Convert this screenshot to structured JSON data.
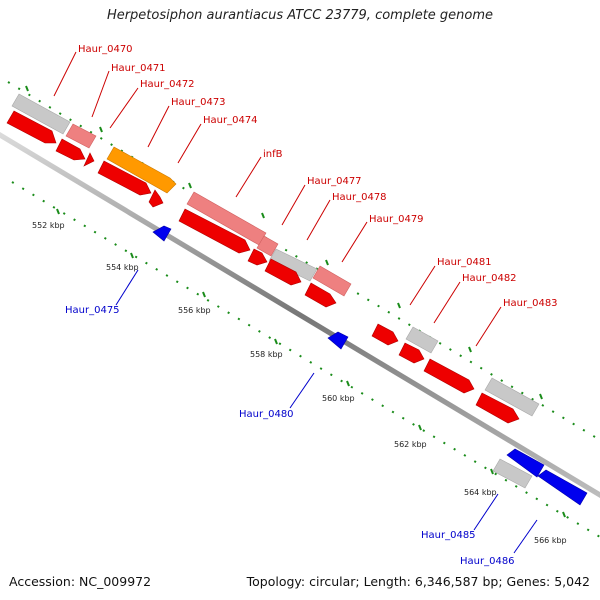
{
  "title": "Herpetosiphon aurantiacus ATCC 23779, complete genome",
  "accession": "Accession: NC_009972",
  "topology": "Topology: circular; Length: 6,346,587 bp; Genes: 5,042",
  "colors": {
    "forward_red": "#ee0000",
    "forward_pink": "#ee8080",
    "forward_orange": "#ff9900",
    "neutral_gray": "#c8c8c8",
    "reverse_blue": "#0000ee",
    "backbone": "#888888",
    "tick_green": "#1a8c1a",
    "forward_label": "#cc0000",
    "reverse_label": "#0000cc"
  },
  "scale": {
    "ticks": [
      {
        "label": "552 kbp"
      },
      {
        "label": "554 kbp"
      },
      {
        "label": "556 kbp"
      },
      {
        "label": "558 kbp"
      },
      {
        "label": "560 kbp"
      },
      {
        "label": "562 kbp"
      },
      {
        "label": "564 kbp"
      },
      {
        "label": "566 kbp"
      }
    ]
  },
  "forward_labels": [
    {
      "name": "Haur_0470"
    },
    {
      "name": "Haur_0471"
    },
    {
      "name": "Haur_0472"
    },
    {
      "name": "Haur_0473"
    },
    {
      "name": "Haur_0474"
    },
    {
      "name": "infB"
    },
    {
      "name": "Haur_0477"
    },
    {
      "name": "Haur_0478"
    },
    {
      "name": "Haur_0479"
    },
    {
      "name": "Haur_0481"
    },
    {
      "name": "Haur_0482"
    },
    {
      "name": "Haur_0483"
    }
  ],
  "reverse_labels": [
    {
      "name": "Haur_0475"
    },
    {
      "name": "Haur_0480"
    },
    {
      "name": "Haur_0485"
    },
    {
      "name": "Haur_0486"
    }
  ]
}
